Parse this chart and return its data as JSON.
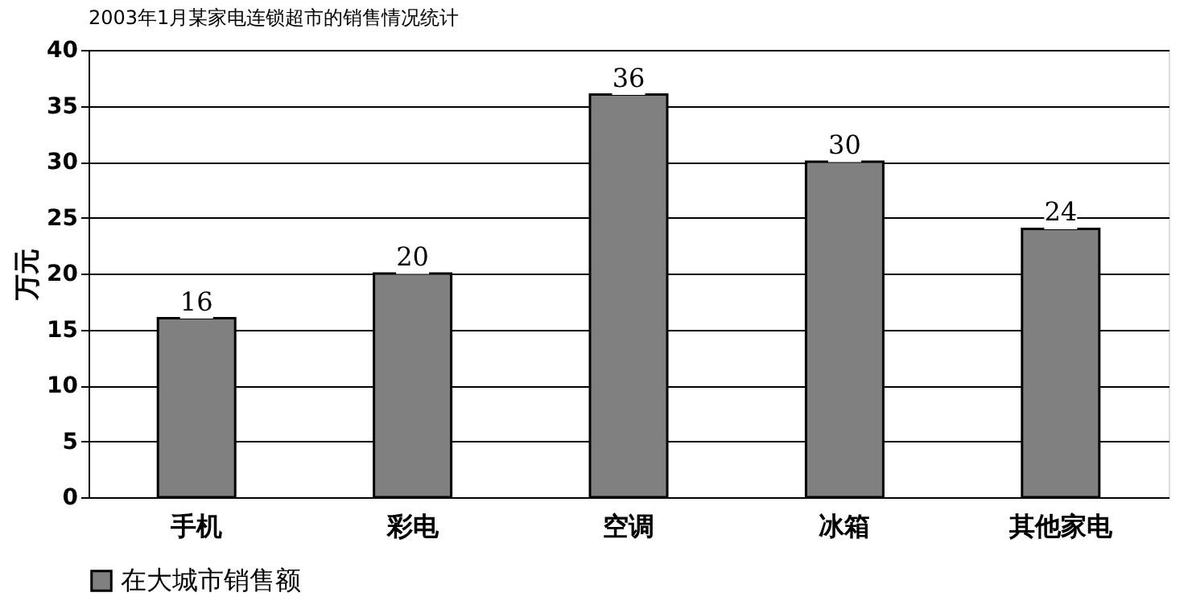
{
  "chart_data": {
    "type": "bar",
    "title": "2003年1月某家电连锁超市的销售情况统计",
    "ylabel": "万元",
    "categories": [
      "手机",
      "彩电",
      "空调",
      "冰箱",
      "其他家电"
    ],
    "series": [
      {
        "name": "在大城市销售额",
        "color": "#808080",
        "values": [
          16,
          20,
          36,
          30,
          24
        ]
      }
    ],
    "ylim": [
      0,
      40
    ],
    "yticks": [
      0,
      5,
      10,
      15,
      20,
      25,
      30,
      35,
      40
    ],
    "grid": "y",
    "legend": "bottom",
    "data_labels": true
  }
}
